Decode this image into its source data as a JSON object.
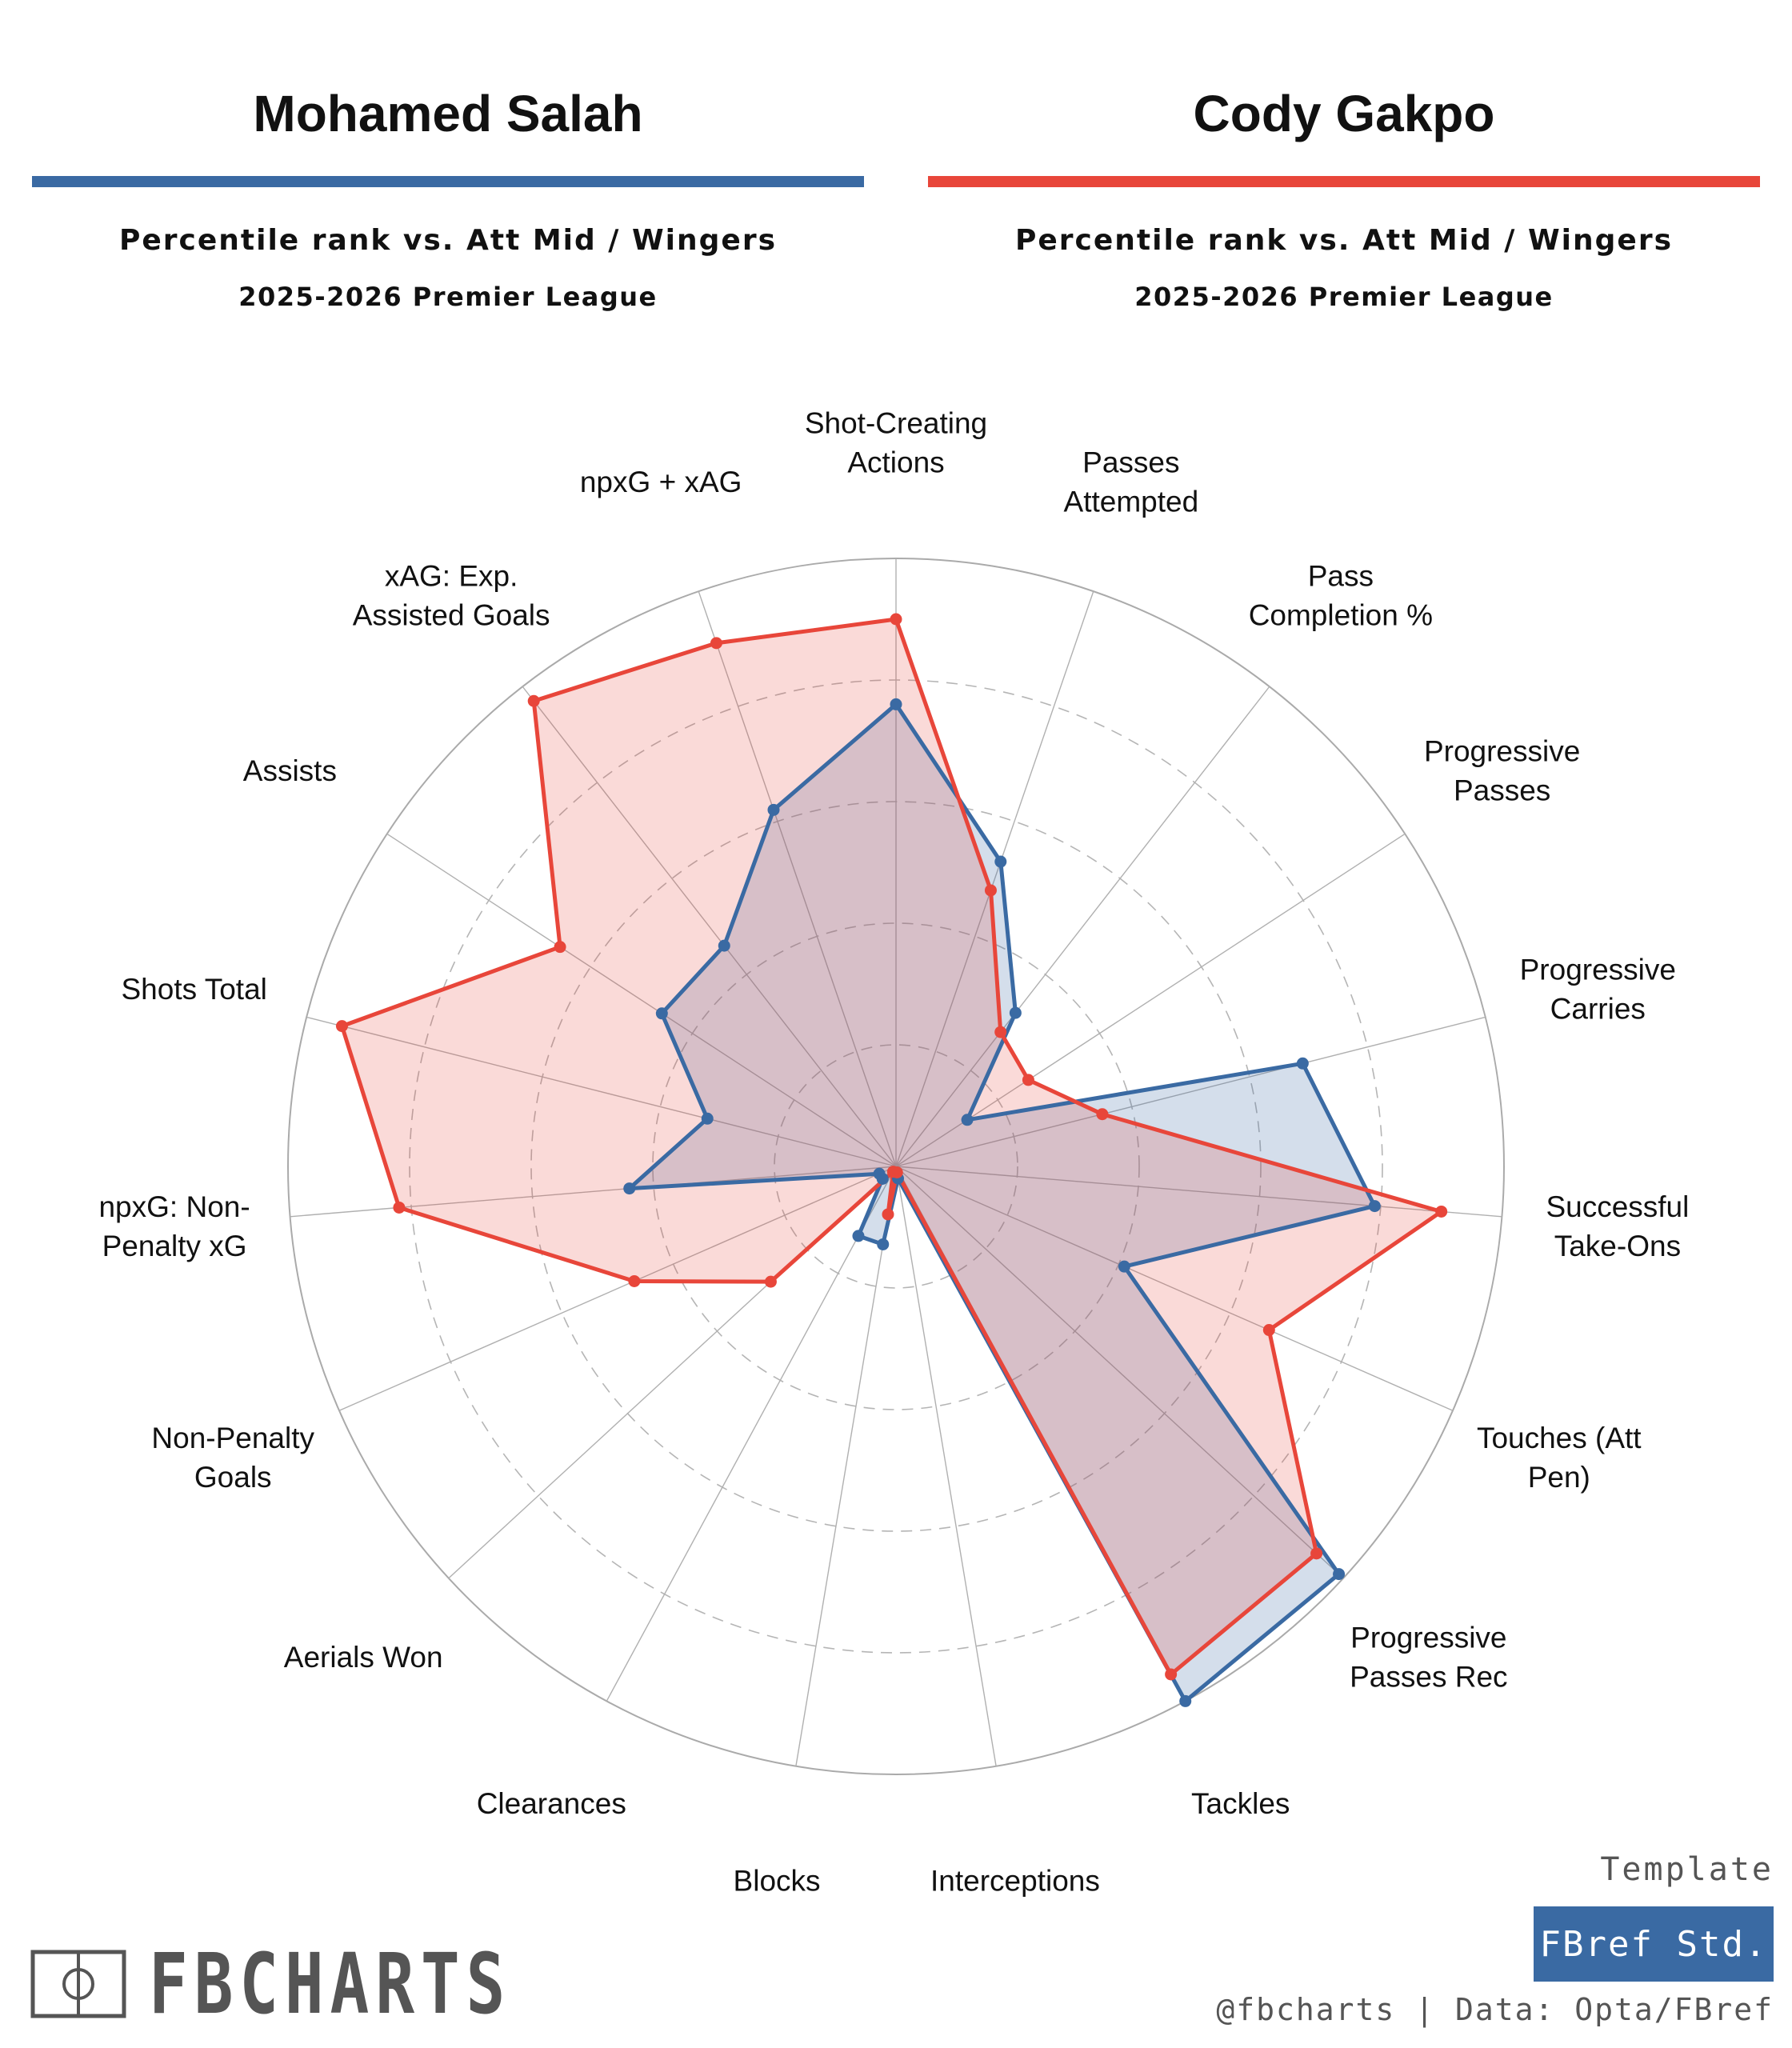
{
  "players": [
    {
      "name": "Mohamed Salah",
      "color": "#3a6aa3",
      "subtitle": "Percentile rank vs. Att Mid / Wingers",
      "season": "2025-2026 Premier League"
    },
    {
      "name": "Cody Gakpo",
      "color": "#e8463a",
      "subtitle": "Percentile rank vs. Att Mid / Wingers",
      "season": "2025-2026 Premier League"
    }
  ],
  "chart_data": {
    "type": "radar",
    "scale": [
      0,
      100
    ],
    "rings": [
      20,
      40,
      60,
      80,
      100
    ],
    "grid": true,
    "start_angle_deg": 90,
    "direction": "clockwise",
    "categories": [
      "Shot-Creating Actions",
      "Passes Attempted",
      "Pass Completion %",
      "Progressive Passes",
      "Progressive Carries",
      "Successful Take-Ons",
      "Touches (Att Pen)",
      "Progressive Passes Rec",
      "Tackles",
      "Interceptions",
      "Blocks",
      "Clearances",
      "Aerials Won",
      "Non-Penalty Goals",
      "npxG: Non-Penalty xG",
      "Shots Total",
      "Assists",
      "xAG: Exp. Assisted Goals",
      "npxG + xAG"
    ],
    "category_labels": [
      [
        "Shot-Creating",
        "Actions"
      ],
      [
        "Passes",
        "Attempted"
      ],
      [
        "Pass",
        "Completion %"
      ],
      [
        "Progressive",
        "Passes"
      ],
      [
        "Progressive",
        "Carries"
      ],
      [
        "Successful",
        "Take-Ons"
      ],
      [
        "Touches (Att",
        "Pen)"
      ],
      [
        "Progressive",
        "Passes Rec"
      ],
      [
        "Tackles"
      ],
      [
        "Interceptions"
      ],
      [
        "Blocks"
      ],
      [
        "Clearances"
      ],
      [
        "Aerials Won"
      ],
      [
        "Non-Penalty",
        "Goals"
      ],
      [
        "npxG: Non-",
        "Penalty xG"
      ],
      [
        "Shots Total"
      ],
      [
        "Assists"
      ],
      [
        "xAG: Exp.",
        "Assisted Goals"
      ],
      [
        "npxG + xAG"
      ]
    ],
    "series": [
      {
        "name": "Mohamed Salah",
        "color": "#3a6aa3",
        "values": [
          76,
          53,
          32,
          14,
          69,
          79,
          41,
          99,
          100,
          2,
          13,
          13,
          3,
          3,
          44,
          32,
          46,
          46,
          62
        ]
      },
      {
        "name": "Cody Gakpo",
        "color": "#e8463a",
        "values": [
          90,
          48,
          28,
          26,
          35,
          90,
          67,
          94,
          95,
          1,
          8,
          1,
          28,
          47,
          82,
          94,
          66,
          97,
          91
        ]
      }
    ]
  },
  "template": {
    "label": "Template",
    "value": "FBref Std.",
    "color": "#3a6aa3"
  },
  "credit": "@fbcharts | Data: Opta/FBref",
  "brand": {
    "name": "FBCHARTS"
  }
}
